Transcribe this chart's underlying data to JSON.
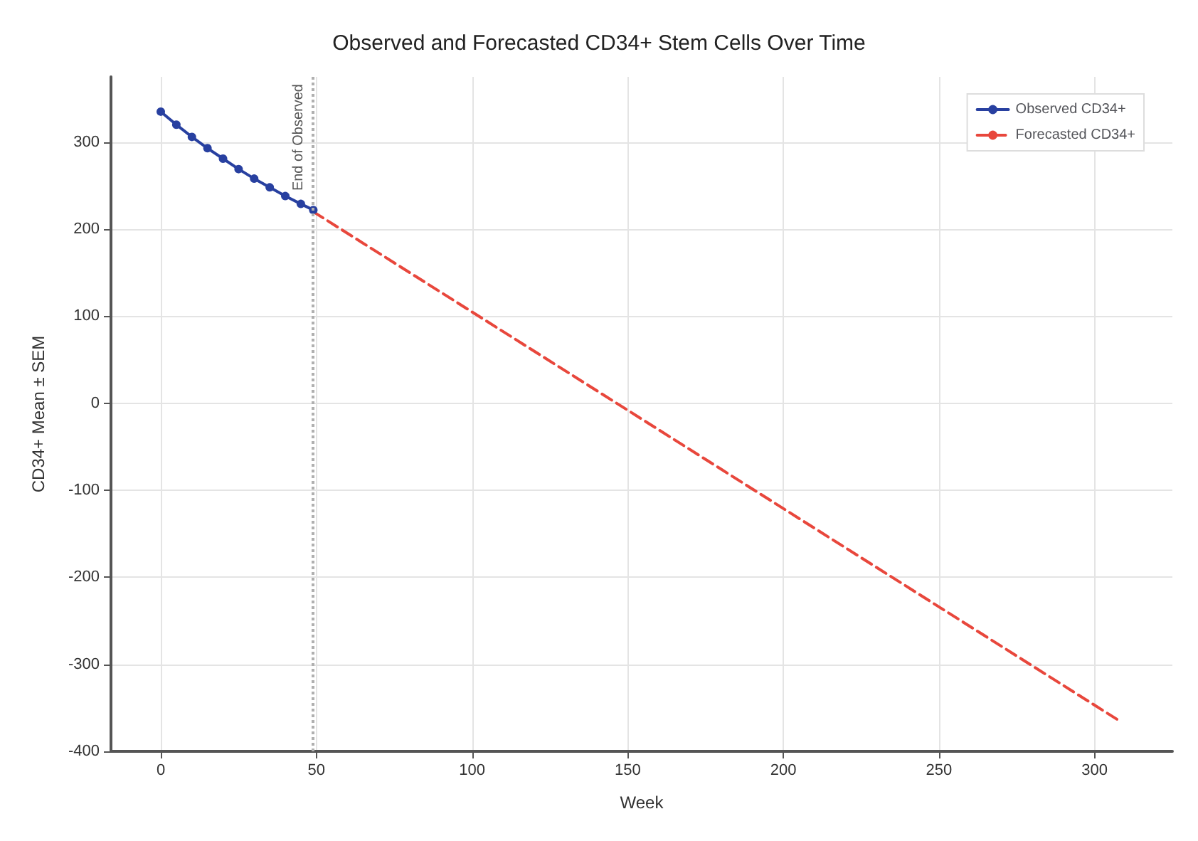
{
  "chart_data": {
    "type": "line",
    "title": "Observed and Forecasted CD34+ Stem Cells Over Time",
    "xlabel": "Week",
    "ylabel": "CD34+ Mean ± SEM",
    "xlim": [
      -16,
      325
    ],
    "xticks": [
      0,
      50,
      100,
      150,
      200,
      250,
      300
    ],
    "ylim": [
      -400,
      375
    ],
    "yticks": [
      -400,
      -300,
      -200,
      -100,
      0,
      100,
      200,
      300
    ],
    "series": [
      {
        "name": "Observed CD34+",
        "color": "#2840a0",
        "marker": "circle",
        "line_style": "solid",
        "x": [
          0,
          5,
          10,
          15,
          20,
          25,
          30,
          35,
          40,
          45,
          49
        ],
        "values": [
          335,
          320,
          306,
          293,
          281,
          269,
          258,
          248,
          238,
          229,
          222
        ]
      },
      {
        "name": "Forecasted CD34+",
        "color": "#e8473c",
        "marker": "none",
        "line_style": "dashed",
        "x": [
          49,
          150,
          308
        ],
        "values": [
          220,
          -8,
          -365
        ]
      }
    ],
    "ref_lines": [
      {
        "axis": "x",
        "value": 49,
        "label": "End of Observed",
        "color": "#b0b0b0",
        "line_style": "dotted"
      }
    ],
    "grid": true,
    "legend": "top right"
  }
}
